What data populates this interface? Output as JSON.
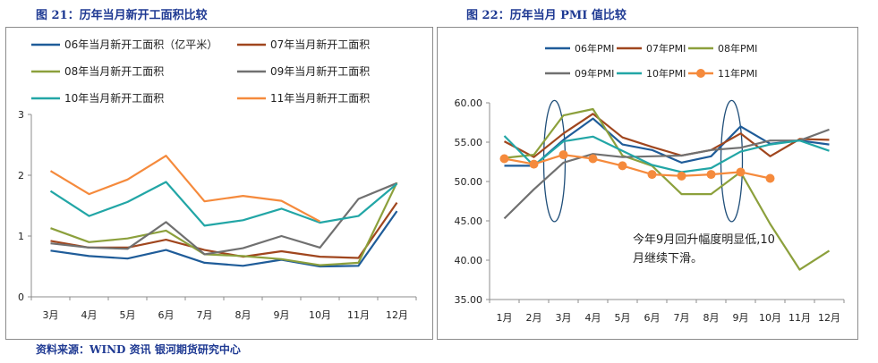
{
  "figure_left_title": "图 21：历年当月新开工面积比较",
  "figure_right_title": "图 22：历年当月 PMI 值比较",
  "source_note": "资料来源：WIND 资讯   银河期货研究中心",
  "chart_data": [
    {
      "type": "line",
      "categories": [
        "3月",
        "4月",
        "5月",
        "6月",
        "7月",
        "8月",
        "9月",
        "10月",
        "11月",
        "12月"
      ],
      "ylim": [
        0,
        3
      ],
      "yticks": [
        0,
        1,
        2,
        3
      ],
      "grid": false,
      "legend_position": "top",
      "series": [
        {
          "name": "06年当月新开工面积（亿平米）",
          "color": "#1f5c99",
          "values": [
            0.76,
            0.67,
            0.63,
            0.77,
            0.56,
            0.51,
            0.61,
            0.5,
            0.51,
            1.41
          ]
        },
        {
          "name": "07年当月新开工面积",
          "color": "#a0461e",
          "values": [
            0.92,
            0.81,
            0.81,
            0.94,
            0.77,
            0.66,
            0.75,
            0.66,
            0.64,
            1.55
          ]
        },
        {
          "name": "08年当月新开工面积",
          "color": "#8ca03c",
          "values": [
            1.13,
            0.9,
            0.96,
            1.09,
            0.7,
            0.67,
            0.62,
            0.52,
            0.56,
            1.88
          ]
        },
        {
          "name": "09年当月新开工面积",
          "color": "#707070",
          "values": [
            0.88,
            0.81,
            0.79,
            1.23,
            0.7,
            0.8,
            1.0,
            0.81,
            1.61,
            1.87
          ]
        },
        {
          "name": "10年当月新开工面积",
          "color": "#22a6a6",
          "values": [
            1.74,
            1.33,
            1.56,
            1.89,
            1.17,
            1.26,
            1.45,
            1.22,
            1.33,
            1.86
          ]
        },
        {
          "name": "11年当月新开工面积",
          "color": "#f58a3c",
          "values": [
            2.07,
            1.69,
            1.93,
            2.32,
            1.57,
            1.66,
            1.58,
            1.24,
            null,
            null
          ]
        }
      ]
    },
    {
      "type": "line",
      "categories": [
        "1月",
        "2月",
        "3月",
        "4月",
        "5月",
        "6月",
        "7月",
        "8月",
        "9月",
        "10月",
        "11月",
        "12月"
      ],
      "ylim": [
        35,
        60
      ],
      "yticks": [
        "35.00",
        "40.00",
        "45.00",
        "50.00",
        "55.00",
        "60.00"
      ],
      "grid": false,
      "legend_position": "top",
      "series": [
        {
          "name": "06年PMI",
          "color": "#1f5c99",
          "values": [
            52.0,
            52.0,
            55.3,
            58.0,
            54.7,
            54.0,
            52.4,
            53.2,
            57.0,
            54.8,
            55.2,
            54.7
          ]
        },
        {
          "name": "07年PMI",
          "color": "#a0461e",
          "values": [
            55.1,
            53.1,
            56.1,
            58.6,
            55.6,
            54.4,
            53.3,
            54.0,
            56.1,
            53.2,
            55.4,
            55.3
          ]
        },
        {
          "name": "08年PMI",
          "color": "#8ca03c",
          "values": [
            53.0,
            53.4,
            58.4,
            59.2,
            53.3,
            52.0,
            48.4,
            48.4,
            51.2,
            44.6,
            38.8,
            41.2
          ]
        },
        {
          "name": "09年PMI",
          "color": "#707070",
          "values": [
            45.3,
            49.0,
            52.4,
            53.5,
            53.1,
            53.2,
            53.3,
            54.0,
            54.3,
            55.2,
            55.2,
            56.6
          ]
        },
        {
          "name": "10年PMI",
          "color": "#22a6a6",
          "values": [
            55.8,
            52.0,
            55.1,
            55.7,
            53.9,
            52.1,
            51.2,
            51.7,
            53.8,
            54.7,
            55.2,
            53.9
          ]
        },
        {
          "name": "11年PMI",
          "color": "#f58a3c",
          "marker": "circle",
          "values": [
            52.9,
            52.2,
            53.4,
            52.9,
            52.0,
            50.9,
            50.7,
            50.9,
            51.2,
            50.4,
            null,
            null
          ]
        }
      ],
      "annotation": "今年9月回升幅度明显低,10月继续下滑。",
      "highlight_ellipses_at": [
        "3月",
        "9月"
      ]
    }
  ]
}
